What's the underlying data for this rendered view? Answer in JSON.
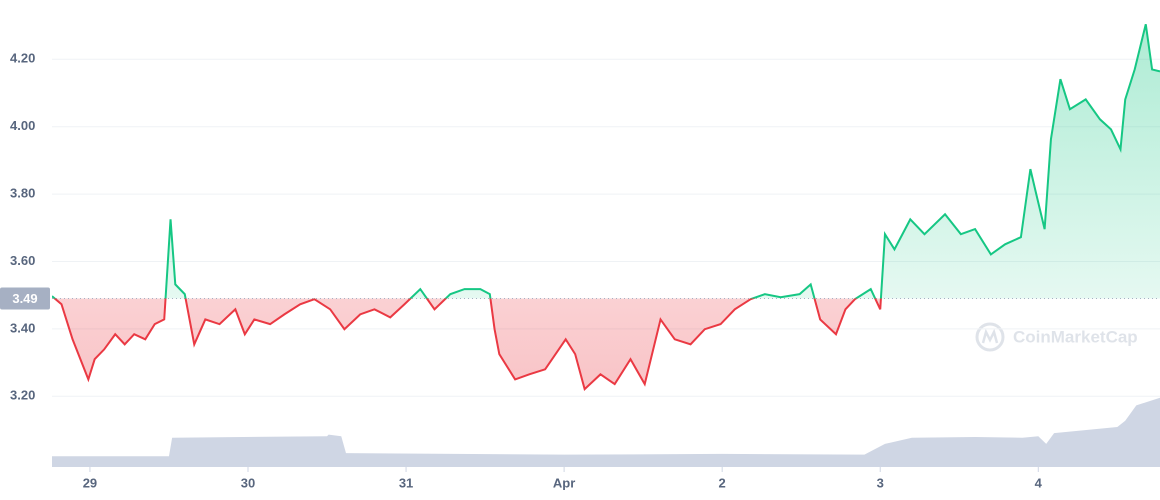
{
  "chart_data": {
    "type": "line",
    "x": [
      -0.24,
      -0.18,
      -0.11,
      -0.01,
      0.03,
      0.09,
      0.16,
      0.22,
      0.28,
      0.35,
      0.41,
      0.47,
      0.51,
      0.54,
      0.6,
      0.66,
      0.73,
      0.82,
      0.92,
      0.98,
      1.04,
      1.14,
      1.23,
      1.33,
      1.42,
      1.52,
      1.61,
      1.71,
      1.8,
      1.9,
      1.99,
      2.09,
      2.18,
      2.28,
      2.37,
      2.47,
      2.53,
      2.56,
      2.59,
      2.69,
      2.78,
      2.88,
      3.01,
      3.07,
      3.13,
      3.23,
      3.32,
      3.42,
      3.51,
      3.61,
      3.7,
      3.8,
      3.89,
      3.99,
      4.08,
      4.18,
      4.27,
      4.37,
      4.49,
      4.56,
      4.62,
      4.72,
      4.78,
      4.84,
      4.94,
      5.0,
      5.03,
      5.09,
      5.19,
      5.28,
      5.41,
      5.51,
      5.6,
      5.7,
      5.79,
      5.89,
      5.95,
      5.98,
      6.04,
      6.08,
      6.14,
      6.2,
      6.3,
      6.39,
      6.46,
      6.52,
      6.55,
      6.61,
      6.68,
      6.72,
      6.77
    ],
    "values": [
      3.497,
      3.473,
      3.369,
      3.25,
      3.31,
      3.339,
      3.384,
      3.354,
      3.384,
      3.369,
      3.414,
      3.428,
      3.725,
      3.532,
      3.503,
      3.354,
      3.428,
      3.414,
      3.458,
      3.384,
      3.428,
      3.414,
      3.443,
      3.473,
      3.488,
      3.458,
      3.399,
      3.443,
      3.458,
      3.434,
      3.473,
      3.518,
      3.458,
      3.503,
      3.518,
      3.518,
      3.503,
      3.399,
      3.325,
      3.25,
      3.265,
      3.28,
      3.369,
      3.325,
      3.221,
      3.265,
      3.236,
      3.31,
      3.236,
      3.428,
      3.369,
      3.354,
      3.399,
      3.414,
      3.458,
      3.488,
      3.503,
      3.494,
      3.503,
      3.532,
      3.428,
      3.384,
      3.458,
      3.488,
      3.518,
      3.458,
      3.681,
      3.636,
      3.725,
      3.681,
      3.74,
      3.681,
      3.696,
      3.621,
      3.651,
      3.672,
      3.874,
      3.814,
      3.696,
      3.963,
      4.141,
      4.052,
      4.081,
      4.022,
      3.992,
      3.933,
      4.081,
      4.17,
      4.304,
      4.17,
      4.164
    ],
    "baseline": 3.49,
    "up_color": "#16c784",
    "down_color": "#ea3943",
    "volume": {
      "x": [
        -0.24,
        0.5,
        0.52,
        1.5,
        1.51,
        1.59,
        1.62,
        3.0,
        4.0,
        4.9,
        5.03,
        5.2,
        5.6,
        5.9,
        6.0,
        6.05,
        6.1,
        6.5,
        6.55,
        6.62,
        6.77
      ],
      "values": [
        14,
        14,
        38,
        40,
        42,
        40,
        18,
        16,
        17,
        16,
        30,
        38,
        39,
        38,
        40,
        30,
        44,
        52,
        60,
        80,
        90
      ],
      "color": "#cfd6e4"
    },
    "xlim": [
      -0.24,
      6.77
    ],
    "ylim": [
      2.99,
      4.376
    ],
    "y2lim": [
      0,
      100
    ],
    "xticks": [
      {
        "value": 0,
        "label": "29"
      },
      {
        "value": 1,
        "label": "30"
      },
      {
        "value": 2,
        "label": "31"
      },
      {
        "value": 3,
        "label": "Apr"
      },
      {
        "value": 4,
        "label": "2"
      },
      {
        "value": 5,
        "label": "3"
      },
      {
        "value": 6,
        "label": "4"
      }
    ],
    "yticks": [
      {
        "value": 3.2,
        "label": "3.20"
      },
      {
        "value": 3.4,
        "label": "3.40"
      },
      {
        "value": 3.6,
        "label": "3.60"
      },
      {
        "value": 3.8,
        "label": "3.80"
      },
      {
        "value": 4.0,
        "label": "4.00"
      },
      {
        "value": 4.2,
        "label": "4.20"
      }
    ],
    "grid": true,
    "watermark": "CoinMarketCap"
  }
}
